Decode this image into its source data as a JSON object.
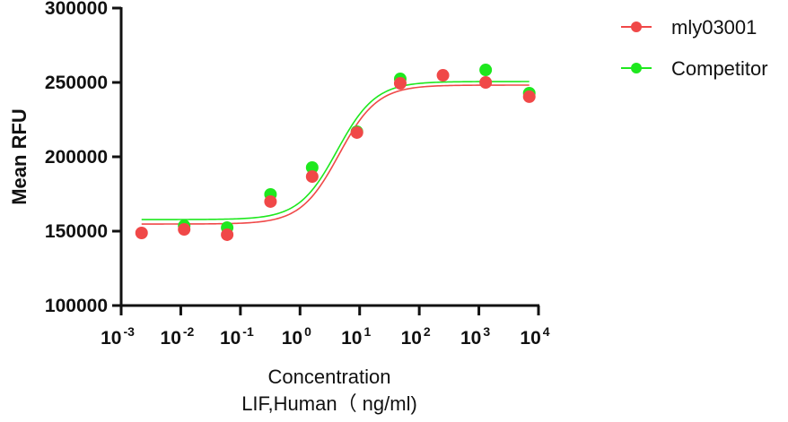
{
  "chart_data": {
    "type": "scatter",
    "title": "",
    "xlabel": [
      "Concentration",
      "LIF,Human（ ng/ml)"
    ],
    "ylabel": "Mean RFU",
    "xscale": "log",
    "xlim": [
      0.001,
      10000
    ],
    "ylim": [
      100000,
      300000
    ],
    "x_ticks": [
      {
        "base": "10",
        "exp": "-3",
        "value": 0.001
      },
      {
        "base": "10",
        "exp": "-2",
        "value": 0.01
      },
      {
        "base": "10",
        "exp": "-1",
        "value": 0.1
      },
      {
        "base": "10",
        "exp": "0",
        "value": 1
      },
      {
        "base": "10",
        "exp": "1",
        "value": 10
      },
      {
        "base": "10",
        "exp": "2",
        "value": 100
      },
      {
        "base": "10",
        "exp": "3",
        "value": 1000
      },
      {
        "base": "10",
        "exp": "4",
        "value": 10000
      }
    ],
    "y_ticks": [
      "300000",
      "250000",
      "200000",
      "150000",
      "100000"
    ],
    "grid": false,
    "legend_position": "top-right",
    "series": [
      {
        "name": "mly03001",
        "color": "#f04848",
        "points": [
          {
            "x": 0.0022,
            "y": 148800
          },
          {
            "x": 0.0114,
            "y": 151200
          },
          {
            "x": 0.06,
            "y": 147600
          },
          {
            "x": 0.32,
            "y": 169900
          },
          {
            "x": 1.6,
            "y": 186700
          },
          {
            "x": 9,
            "y": 216300
          },
          {
            "x": 48,
            "y": 249400
          },
          {
            "x": 250,
            "y": 254800
          },
          {
            "x": 1300,
            "y": 250000
          },
          {
            "x": 7000,
            "y": 240400
          }
        ],
        "fit": {
          "bottom": 154800,
          "top": 248200,
          "ec50": 4.5,
          "hill": 1.0
        }
      },
      {
        "name": "Competitor",
        "color": "#1ee81e",
        "points": [
          {
            "x": 0.0114,
            "y": 153600
          },
          {
            "x": 0.06,
            "y": 152400
          },
          {
            "x": 0.32,
            "y": 174700
          },
          {
            "x": 1.6,
            "y": 192800
          },
          {
            "x": 9,
            "y": 216900
          },
          {
            "x": 48,
            "y": 252400
          },
          {
            "x": 1300,
            "y": 258400
          },
          {
            "x": 7000,
            "y": 242800
          }
        ],
        "fit": {
          "bottom": 157800,
          "top": 250600,
          "ec50": 4.2,
          "hill": 1.0
        }
      }
    ]
  }
}
